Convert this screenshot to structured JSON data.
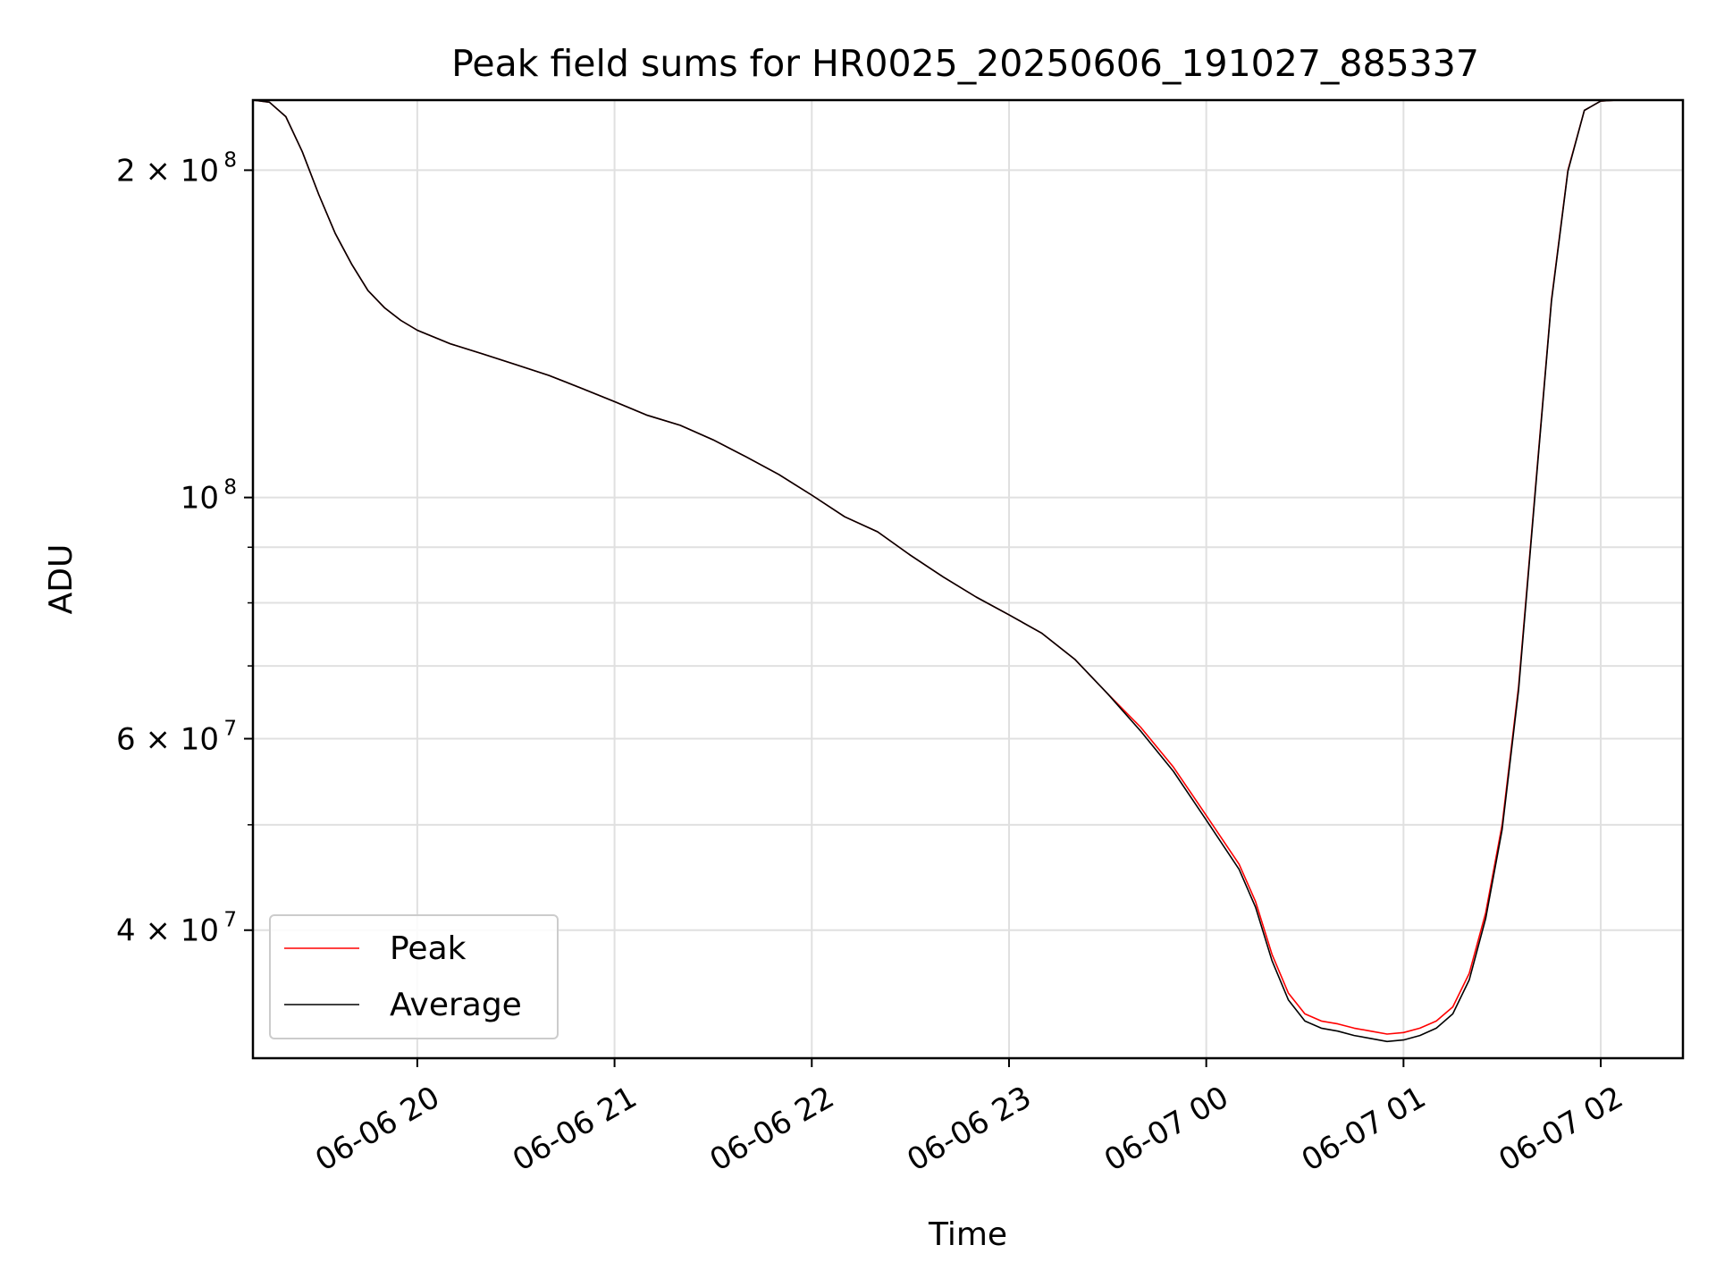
{
  "chart_data": {
    "type": "line",
    "title": "Peak field sums for HR0025_20250606_191027_885337",
    "xlabel": "Time",
    "ylabel": "ADU",
    "y_scale": "log",
    "xlim": [
      "2025-06-06 19:10",
      "2025-06-07 02:25"
    ],
    "ylim": [
      30500000,
      232000000
    ],
    "x_ticks": [
      {
        "value": "2025-06-06 20:00",
        "label": "06-06 20"
      },
      {
        "value": "2025-06-06 21:00",
        "label": "06-06 21"
      },
      {
        "value": "2025-06-06 22:00",
        "label": "06-06 22"
      },
      {
        "value": "2025-06-06 23:00",
        "label": "06-06 23"
      },
      {
        "value": "2025-06-07 00:00",
        "label": "06-07 00"
      },
      {
        "value": "2025-06-07 01:00",
        "label": "06-07 01"
      },
      {
        "value": "2025-06-07 02:00",
        "label": "06-07 02"
      }
    ],
    "y_ticks": [
      {
        "value": 40000000,
        "label": "4 × 10",
        "exponent": "7"
      },
      {
        "value": 60000000,
        "label": "6 × 10",
        "exponent": "7"
      },
      {
        "value": 100000000,
        "label": "10",
        "exponent": "8"
      },
      {
        "value": 200000000,
        "label": "2 × 10",
        "exponent": "8"
      }
    ],
    "y_minor_ticks": [
      50000000,
      70000000,
      80000000,
      90000000
    ],
    "grid": true,
    "legend_position": "lower-left",
    "series": [
      {
        "name": "Peak",
        "color": "#ff0000",
        "x": [
          "2025-06-06 19:10",
          "2025-06-06 19:15",
          "2025-06-06 19:20",
          "2025-06-06 19:25",
          "2025-06-06 19:30",
          "2025-06-06 19:35",
          "2025-06-06 19:40",
          "2025-06-06 19:45",
          "2025-06-06 19:50",
          "2025-06-06 19:55",
          "2025-06-06 20:00",
          "2025-06-06 20:10",
          "2025-06-06 20:20",
          "2025-06-06 20:30",
          "2025-06-06 20:40",
          "2025-06-06 20:50",
          "2025-06-06 21:00",
          "2025-06-06 21:10",
          "2025-06-06 21:20",
          "2025-06-06 21:30",
          "2025-06-06 21:40",
          "2025-06-06 21:50",
          "2025-06-06 22:00",
          "2025-06-06 22:10",
          "2025-06-06 22:20",
          "2025-06-06 22:30",
          "2025-06-06 22:40",
          "2025-06-06 22:50",
          "2025-06-06 23:00",
          "2025-06-06 23:10",
          "2025-06-06 23:20",
          "2025-06-06 23:30",
          "2025-06-06 23:40",
          "2025-06-06 23:50",
          "2025-06-07 00:00",
          "2025-06-07 00:10",
          "2025-06-07 00:15",
          "2025-06-07 00:20",
          "2025-06-07 00:25",
          "2025-06-07 00:30",
          "2025-06-07 00:35",
          "2025-06-07 00:40",
          "2025-06-07 00:45",
          "2025-06-07 00:50",
          "2025-06-07 00:55",
          "2025-06-07 01:00",
          "2025-06-07 01:05",
          "2025-06-07 01:10",
          "2025-06-07 01:15",
          "2025-06-07 01:20",
          "2025-06-07 01:25",
          "2025-06-07 01:30",
          "2025-06-07 01:35",
          "2025-06-07 01:40",
          "2025-06-07 01:45",
          "2025-06-07 01:50",
          "2025-06-07 01:55",
          "2025-06-07 02:00",
          "2025-06-07 02:05",
          "2025-06-07 02:10",
          "2025-06-07 02:15",
          "2025-06-07 02:20",
          "2025-06-07 02:25"
        ],
        "y": [
          232000000,
          231000000,
          224000000,
          208000000,
          190000000,
          175000000,
          164000000,
          155000000,
          149500000,
          145500000,
          142500000,
          138500000,
          135500000,
          132500000,
          129500000,
          126000000,
          122500000,
          119000000,
          116500000,
          113000000,
          109000000,
          105000000,
          100500000,
          96000000,
          93000000,
          88500000,
          84500000,
          81000000,
          78000000,
          75000000,
          71000000,
          66000000,
          61500000,
          56500000,
          51000000,
          46000000,
          42500000,
          38000000,
          35000000,
          33500000,
          33000000,
          32800000,
          32500000,
          32300000,
          32100000,
          32200000,
          32500000,
          33000000,
          34000000,
          36500000,
          41500000,
          50000000,
          67000000,
          101000000,
          152000000,
          200000000,
          227000000,
          231500000,
          232000000,
          232000000,
          232000000,
          232000000,
          232000000
        ]
      },
      {
        "name": "Average",
        "color": "#000000",
        "x": [
          "2025-06-06 19:10",
          "2025-06-06 19:15",
          "2025-06-06 19:20",
          "2025-06-06 19:25",
          "2025-06-06 19:30",
          "2025-06-06 19:35",
          "2025-06-06 19:40",
          "2025-06-06 19:45",
          "2025-06-06 19:50",
          "2025-06-06 19:55",
          "2025-06-06 20:00",
          "2025-06-06 20:10",
          "2025-06-06 20:20",
          "2025-06-06 20:30",
          "2025-06-06 20:40",
          "2025-06-06 20:50",
          "2025-06-06 21:00",
          "2025-06-06 21:10",
          "2025-06-06 21:20",
          "2025-06-06 21:30",
          "2025-06-06 21:40",
          "2025-06-06 21:50",
          "2025-06-06 22:00",
          "2025-06-06 22:10",
          "2025-06-06 22:20",
          "2025-06-06 22:30",
          "2025-06-06 22:40",
          "2025-06-06 22:50",
          "2025-06-06 23:00",
          "2025-06-06 23:10",
          "2025-06-06 23:20",
          "2025-06-06 23:30",
          "2025-06-06 23:40",
          "2025-06-06 23:50",
          "2025-06-07 00:00",
          "2025-06-07 00:10",
          "2025-06-07 00:15",
          "2025-06-07 00:20",
          "2025-06-07 00:25",
          "2025-06-07 00:30",
          "2025-06-07 00:35",
          "2025-06-07 00:40",
          "2025-06-07 00:45",
          "2025-06-07 00:50",
          "2025-06-07 00:55",
          "2025-06-07 01:00",
          "2025-06-07 01:05",
          "2025-06-07 01:10",
          "2025-06-07 01:15",
          "2025-06-07 01:20",
          "2025-06-07 01:25",
          "2025-06-07 01:30",
          "2025-06-07 01:35",
          "2025-06-07 01:40",
          "2025-06-07 01:45",
          "2025-06-07 01:50",
          "2025-06-07 01:55",
          "2025-06-07 02:00",
          "2025-06-07 02:05",
          "2025-06-07 02:10",
          "2025-06-07 02:15",
          "2025-06-07 02:20",
          "2025-06-07 02:25"
        ],
        "y": [
          232000000,
          231000000,
          224000000,
          208000000,
          190000000,
          175000000,
          164000000,
          155000000,
          149500000,
          145500000,
          142500000,
          138500000,
          135500000,
          132500000,
          129500000,
          126000000,
          122500000,
          119000000,
          116500000,
          113000000,
          109000000,
          105000000,
          100500000,
          96000000,
          93000000,
          88500000,
          84500000,
          81000000,
          78000000,
          75000000,
          71000000,
          66000000,
          61000000,
          56000000,
          50500000,
          45500000,
          42000000,
          37500000,
          34500000,
          33000000,
          32500000,
          32300000,
          32000000,
          31800000,
          31600000,
          31700000,
          32000000,
          32500000,
          33500000,
          36000000,
          41000000,
          49500000,
          66500000,
          100500000,
          151500000,
          199500000,
          227000000,
          231500000,
          232000000,
          232000000,
          232000000,
          232000000,
          232000000
        ]
      }
    ]
  }
}
